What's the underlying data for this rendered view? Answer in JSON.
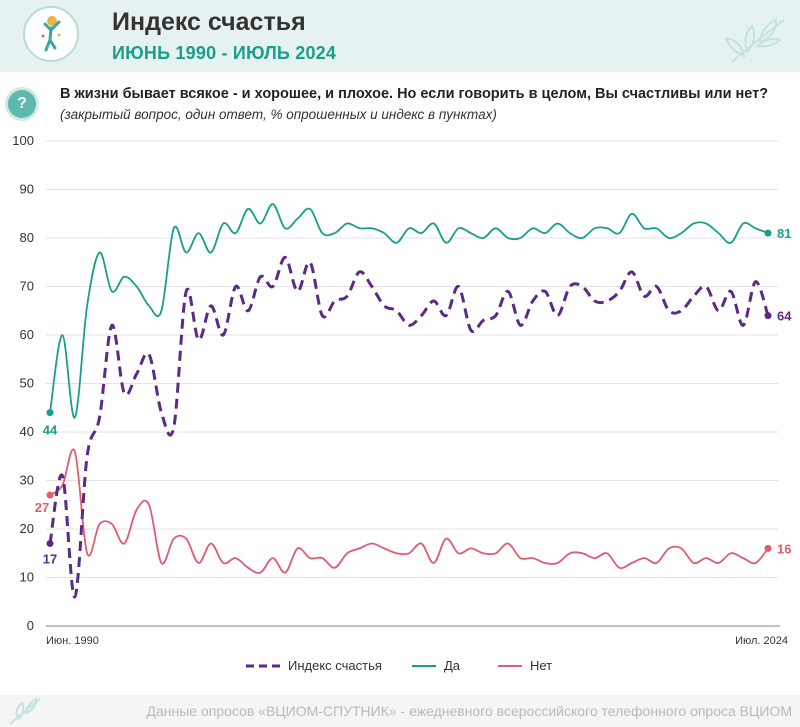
{
  "header": {
    "title": "Индекс счастья",
    "period": "ИЮНЬ 1990 - ИЮЛЬ 2024"
  },
  "question": {
    "text": "В жизни бывает всякое - и хорошее, и плохое. Но если говорить в целом, Вы счастливы  или нет?",
    "note": "(закрытый вопрос, один ответ, % опрошенных и индекс в пунктах)"
  },
  "footer": {
    "text": "Данные опросов «ВЦИОМ-СПУТНИК» - ежедневного всероссийского телефонного опроса ВЦИОМ"
  },
  "icons": {
    "header_logo": "happy-person-icon",
    "question": "question-icon",
    "decoration": "leaf-icon"
  },
  "chart_data": {
    "type": "line",
    "y_ticks": [
      0,
      10,
      20,
      30,
      40,
      50,
      60,
      70,
      80,
      90,
      100
    ],
    "ylim": [
      0,
      100
    ],
    "x_labels": {
      "start": "Июн. 1990",
      "end": "Июл. 2024"
    },
    "grid": true,
    "legend_position": "bottom",
    "series": [
      {
        "name": "Индекс счастья",
        "color": "#5b2a86",
        "style": "dashed",
        "start_label": "17",
        "end_label": "64",
        "values": [
          17,
          31,
          6,
          35,
          43,
          62,
          48,
          52,
          56,
          44,
          41,
          69,
          59,
          66,
          60,
          70,
          65,
          72,
          70,
          76,
          69,
          75,
          64,
          67,
          68,
          73,
          70,
          66,
          65,
          62,
          64,
          67,
          64,
          70,
          61,
          63,
          64,
          69,
          62,
          67,
          69,
          64,
          70,
          70,
          67,
          67,
          69,
          73,
          68,
          70,
          65,
          65,
          68,
          70,
          65,
          69,
          62,
          71,
          64
        ]
      },
      {
        "name": "Да",
        "color": "#1a9e8a",
        "style": "solid",
        "start_label": "44",
        "end_label": "81",
        "values": [
          44,
          60,
          43,
          66,
          77,
          69,
          72,
          70,
          66,
          65,
          82,
          77,
          81,
          77,
          83,
          81,
          86,
          83,
          87,
          82,
          84,
          86,
          81,
          81,
          83,
          82,
          82,
          81,
          79,
          82,
          81,
          83,
          79,
          82,
          81,
          80,
          82,
          80,
          80,
          82,
          81,
          83,
          81,
          80,
          82,
          82,
          81,
          85,
          82,
          82,
          80,
          81,
          83,
          83,
          81,
          79,
          83,
          82,
          81
        ]
      },
      {
        "name": "Нет",
        "color": "#e05c6e",
        "style": "solid",
        "start_label": "27",
        "end_label": "16",
        "values": [
          27,
          29,
          36,
          15,
          21,
          21,
          17,
          24,
          25,
          13,
          18,
          18,
          13,
          17,
          13,
          14,
          12,
          11,
          14,
          11,
          16,
          14,
          14,
          12,
          15,
          16,
          17,
          16,
          15,
          15,
          17,
          13,
          18,
          15,
          16,
          15,
          15,
          17,
          14,
          14,
          13,
          13,
          15,
          15,
          14,
          15,
          12,
          13,
          14,
          13,
          16,
          16,
          13,
          14,
          13,
          15,
          14,
          13,
          16
        ]
      }
    ]
  }
}
